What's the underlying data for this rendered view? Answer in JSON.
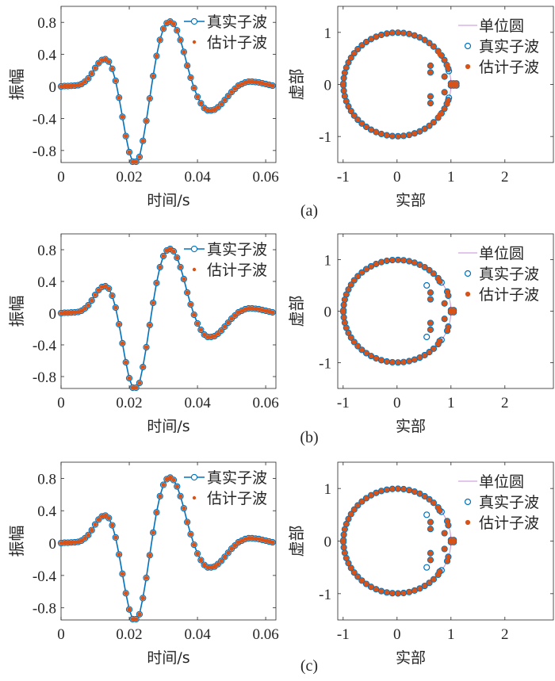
{
  "chart_data": [
    {
      "panel": "(a)",
      "kind": "wavelet",
      "type": "line",
      "xlabel": "时间/s",
      "ylabel": "振幅",
      "xlim": [
        0,
        0.063
      ],
      "ylim": [
        -0.95,
        1.0
      ],
      "xticks": [
        "0",
        "0.02",
        "0.04",
        "0.06"
      ],
      "yticks": [
        "-0.8",
        "-0.4",
        "0",
        "0.4",
        "0.8"
      ],
      "legend_position": "top-right",
      "series": [
        {
          "name": "真实子波",
          "color": "#0072BD",
          "marker": "open-circle",
          "line": true
        },
        {
          "name": "估计子波",
          "color": "#D95319",
          "marker": "dot",
          "line": false
        }
      ],
      "x": [
        0,
        0.001,
        0.002,
        0.003,
        0.004,
        0.005,
        0.006,
        0.007,
        0.008,
        0.009,
        0.01,
        0.011,
        0.012,
        0.013,
        0.014,
        0.015,
        0.016,
        0.017,
        0.018,
        0.019,
        0.02,
        0.021,
        0.022,
        0.023,
        0.024,
        0.025,
        0.026,
        0.027,
        0.028,
        0.029,
        0.03,
        0.031,
        0.032,
        0.033,
        0.034,
        0.035,
        0.036,
        0.037,
        0.038,
        0.039,
        0.04,
        0.041,
        0.042,
        0.043,
        0.044,
        0.045,
        0.046,
        0.047,
        0.048,
        0.049,
        0.05,
        0.051,
        0.052,
        0.053,
        0.054,
        0.055,
        0.056,
        0.057,
        0.058,
        0.059,
        0.06,
        0.061,
        0.062
      ],
      "values": [
        0,
        0.005,
        0.005,
        0.008,
        0.01,
        0.015,
        0.03,
        0.06,
        0.1,
        0.16,
        0.23,
        0.29,
        0.33,
        0.34,
        0.31,
        0.22,
        0.07,
        -0.14,
        -0.38,
        -0.62,
        -0.82,
        -0.94,
        -0.94,
        -0.88,
        -0.68,
        -0.43,
        -0.15,
        0.13,
        0.38,
        0.58,
        0.72,
        0.79,
        0.81,
        0.78,
        0.7,
        0.58,
        0.43,
        0.26,
        0.11,
        -0.02,
        -0.13,
        -0.21,
        -0.27,
        -0.3,
        -0.3,
        -0.29,
        -0.26,
        -0.22,
        -0.17,
        -0.12,
        -0.07,
        -0.03,
        0.01,
        0.03,
        0.05,
        0.06,
        0.06,
        0.055,
        0.05,
        0.04,
        0.03,
        0.02,
        0.01
      ]
    },
    {
      "panel": "(a)",
      "kind": "zeros",
      "type": "scatter",
      "xlabel": "实部",
      "ylabel": "虚部",
      "xlim": [
        -1.1,
        2.9
      ],
      "ylim": [
        -1.5,
        1.5
      ],
      "xticks": [
        "-1",
        "0",
        "1",
        "2"
      ],
      "yticks": [
        "-1",
        "0",
        "1"
      ],
      "legend_position": "top-right",
      "series": [
        {
          "name": "单位圆",
          "color": "#C58ED8",
          "style": "line"
        },
        {
          "name": "真实子波",
          "color": "#0072BD",
          "style": "open-circle"
        },
        {
          "name": "估计子波",
          "color": "#D95319",
          "style": "filled-dot"
        }
      ],
      "true_zeros": {
        "circle_angles_deg": [
          15,
          22,
          28,
          34,
          40,
          47,
          53,
          59,
          65,
          71,
          77,
          83,
          89,
          95,
          101,
          107,
          113,
          119,
          125,
          131,
          137,
          143,
          149,
          155,
          161,
          167,
          173,
          179
        ],
        "circle_radius": 0.995,
        "real_zeros": [
          [
            0.62,
            0.36
          ],
          [
            0.62,
            -0.36
          ],
          [
            0.62,
            0.23
          ],
          [
            0.62,
            -0.23
          ],
          [
            0.88,
            0.15
          ],
          [
            0.88,
            -0.15
          ],
          [
            1.0,
            0.02
          ],
          [
            1.0,
            -0.02
          ],
          [
            1.05,
            0.02
          ],
          [
            1.05,
            -0.02
          ],
          [
            1.1,
            0.02
          ],
          [
            1.1,
            -0.02
          ],
          [
            0.95,
            0.3
          ],
          [
            0.95,
            -0.3
          ]
        ]
      },
      "est_zeros": {
        "circle_angles_deg": [
          22,
          28,
          34,
          40,
          47,
          53,
          59,
          65,
          71,
          77,
          83,
          89,
          95,
          101,
          107,
          113,
          119,
          125,
          131,
          137,
          143,
          149,
          155,
          161,
          167,
          173,
          179
        ],
        "circle_radius": 0.995,
        "real_zeros": [
          [
            0.62,
            0.36
          ],
          [
            0.62,
            -0.36
          ],
          [
            0.62,
            0.23
          ],
          [
            0.62,
            -0.23
          ],
          [
            0.88,
            0.15
          ],
          [
            0.88,
            -0.15
          ],
          [
            1.0,
            0.02
          ],
          [
            1.0,
            -0.02
          ],
          [
            1.05,
            0.02
          ],
          [
            1.05,
            -0.02
          ],
          [
            1.1,
            0.02
          ],
          [
            1.1,
            -0.02
          ],
          [
            0.95,
            0.3
          ],
          [
            0.95,
            -0.3
          ],
          [
            0.79,
            0.58
          ],
          [
            0.79,
            -0.58
          ],
          [
            0.93,
            0.38
          ],
          [
            0.93,
            -0.38
          ]
        ]
      }
    },
    {
      "panel": "(b)",
      "kind": "wavelet",
      "type": "line",
      "xlabel": "时间/s",
      "ylabel": "振幅",
      "xlim": [
        0,
        0.063
      ],
      "ylim": [
        -0.95,
        1.0
      ],
      "xticks": [
        "0",
        "0.02",
        "0.04",
        "0.06"
      ],
      "yticks": [
        "-0.8",
        "-0.4",
        "0",
        "0.4",
        "0.8"
      ],
      "legend_position": "top-right",
      "series": [
        {
          "name": "真实子波",
          "color": "#0072BD",
          "marker": "open-circle",
          "line": true
        },
        {
          "name": "估计子波",
          "color": "#D95319",
          "marker": "dot",
          "line": false
        }
      ],
      "x": [
        0,
        0.001,
        0.002,
        0.003,
        0.004,
        0.005,
        0.006,
        0.007,
        0.008,
        0.009,
        0.01,
        0.011,
        0.012,
        0.013,
        0.014,
        0.015,
        0.016,
        0.017,
        0.018,
        0.019,
        0.02,
        0.021,
        0.022,
        0.023,
        0.024,
        0.025,
        0.026,
        0.027,
        0.028,
        0.029,
        0.03,
        0.031,
        0.032,
        0.033,
        0.034,
        0.035,
        0.036,
        0.037,
        0.038,
        0.039,
        0.04,
        0.041,
        0.042,
        0.043,
        0.044,
        0.045,
        0.046,
        0.047,
        0.048,
        0.049,
        0.05,
        0.051,
        0.052,
        0.053,
        0.054,
        0.055,
        0.056,
        0.057,
        0.058,
        0.059,
        0.06,
        0.061,
        0.062
      ],
      "values": [
        0,
        0.005,
        0.005,
        0.008,
        0.01,
        0.015,
        0.03,
        0.06,
        0.1,
        0.16,
        0.23,
        0.29,
        0.33,
        0.34,
        0.31,
        0.22,
        0.07,
        -0.14,
        -0.38,
        -0.62,
        -0.82,
        -0.94,
        -0.94,
        -0.88,
        -0.68,
        -0.43,
        -0.15,
        0.13,
        0.38,
        0.58,
        0.72,
        0.79,
        0.81,
        0.78,
        0.7,
        0.58,
        0.43,
        0.26,
        0.11,
        -0.02,
        -0.13,
        -0.21,
        -0.27,
        -0.3,
        -0.3,
        -0.29,
        -0.26,
        -0.22,
        -0.17,
        -0.12,
        -0.07,
        -0.03,
        0.01,
        0.03,
        0.05,
        0.06,
        0.06,
        0.055,
        0.05,
        0.04,
        0.03,
        0.02,
        0.01
      ]
    },
    {
      "panel": "(b)",
      "kind": "zeros",
      "type": "scatter",
      "xlabel": "实部",
      "ylabel": "虚部",
      "xlim": [
        -1.1,
        2.9
      ],
      "ylim": [
        -1.5,
        1.5
      ],
      "xticks": [
        "-1",
        "0",
        "1",
        "2"
      ],
      "yticks": [
        "-1",
        "0",
        "1"
      ],
      "legend_position": "top-right",
      "series": [
        {
          "name": "单位圆",
          "color": "#C58ED8",
          "style": "line"
        },
        {
          "name": "真实子波",
          "color": "#0072BD",
          "style": "open-circle"
        },
        {
          "name": "估计子波",
          "color": "#D95319",
          "style": "filled-dot"
        }
      ],
      "true_zeros": {
        "circle_angles_deg": [
          34,
          40,
          47,
          53,
          59,
          65,
          71,
          77,
          83,
          89,
          95,
          101,
          107,
          113,
          119,
          125,
          131,
          137,
          143,
          149,
          155,
          161,
          167,
          173,
          179
        ],
        "circle_radius": 0.995,
        "real_zeros": [
          [
            0.55,
            0.5
          ],
          [
            0.55,
            -0.5
          ],
          [
            0.62,
            0.36
          ],
          [
            0.62,
            -0.36
          ],
          [
            0.62,
            0.23
          ],
          [
            0.62,
            -0.23
          ],
          [
            0.88,
            0.15
          ],
          [
            0.88,
            -0.15
          ],
          [
            1.0,
            0.02
          ],
          [
            1.0,
            -0.02
          ],
          [
            1.05,
            0.02
          ],
          [
            1.05,
            -0.02
          ],
          [
            0.95,
            0.3
          ],
          [
            0.95,
            -0.3
          ],
          [
            0.79,
            0.58
          ],
          [
            0.79,
            -0.58
          ],
          [
            0.93,
            0.38
          ],
          [
            0.93,
            -0.38
          ]
        ]
      },
      "est_zeros": {
        "circle_angles_deg": [
          40,
          47,
          53,
          59,
          65,
          71,
          77,
          83,
          89,
          95,
          101,
          107,
          113,
          119,
          125,
          131,
          137,
          143,
          149,
          155,
          161,
          167,
          173,
          179
        ],
        "circle_radius": 0.995,
        "real_zeros": [
          [
            0.62,
            0.36
          ],
          [
            0.62,
            -0.36
          ],
          [
            0.62,
            0.23
          ],
          [
            0.62,
            -0.23
          ],
          [
            0.88,
            0.15
          ],
          [
            0.88,
            -0.15
          ],
          [
            1.0,
            0.02
          ],
          [
            1.0,
            -0.02
          ],
          [
            1.05,
            0.02
          ],
          [
            1.05,
            -0.02
          ],
          [
            0.95,
            0.3
          ],
          [
            0.95,
            -0.3
          ],
          [
            0.79,
            0.58
          ],
          [
            0.79,
            -0.58
          ],
          [
            0.93,
            0.38
          ],
          [
            0.93,
            -0.38
          ]
        ]
      }
    },
    {
      "panel": "(c)",
      "kind": "wavelet",
      "type": "line",
      "xlabel": "时间/s",
      "ylabel": "振幅",
      "xlim": [
        0,
        0.063
      ],
      "ylim": [
        -0.95,
        1.0
      ],
      "xticks": [
        "0",
        "0.02",
        "0.04",
        "0.06"
      ],
      "yticks": [
        "-0.8",
        "-0.4",
        "0",
        "0.4",
        "0.8"
      ],
      "legend_position": "top-right",
      "series": [
        {
          "name": "真实子波",
          "color": "#0072BD",
          "marker": "open-circle",
          "line": true
        },
        {
          "name": "估计子波",
          "color": "#D95319",
          "marker": "dot",
          "line": false
        }
      ],
      "x": [
        0,
        0.001,
        0.002,
        0.003,
        0.004,
        0.005,
        0.006,
        0.007,
        0.008,
        0.009,
        0.01,
        0.011,
        0.012,
        0.013,
        0.014,
        0.015,
        0.016,
        0.017,
        0.018,
        0.019,
        0.02,
        0.021,
        0.022,
        0.023,
        0.024,
        0.025,
        0.026,
        0.027,
        0.028,
        0.029,
        0.03,
        0.031,
        0.032,
        0.033,
        0.034,
        0.035,
        0.036,
        0.037,
        0.038,
        0.039,
        0.04,
        0.041,
        0.042,
        0.043,
        0.044,
        0.045,
        0.046,
        0.047,
        0.048,
        0.049,
        0.05,
        0.051,
        0.052,
        0.053,
        0.054,
        0.055,
        0.056,
        0.057,
        0.058,
        0.059,
        0.06,
        0.061,
        0.062
      ],
      "values": [
        0,
        0.005,
        0.005,
        0.008,
        0.01,
        0.015,
        0.03,
        0.06,
        0.1,
        0.16,
        0.23,
        0.29,
        0.33,
        0.34,
        0.31,
        0.22,
        0.07,
        -0.14,
        -0.38,
        -0.62,
        -0.82,
        -0.94,
        -0.94,
        -0.88,
        -0.68,
        -0.43,
        -0.15,
        0.13,
        0.38,
        0.58,
        0.72,
        0.79,
        0.81,
        0.78,
        0.7,
        0.58,
        0.43,
        0.26,
        0.11,
        -0.02,
        -0.13,
        -0.21,
        -0.27,
        -0.3,
        -0.3,
        -0.29,
        -0.26,
        -0.22,
        -0.17,
        -0.12,
        -0.07,
        -0.03,
        0.01,
        0.03,
        0.05,
        0.06,
        0.06,
        0.055,
        0.05,
        0.04,
        0.03,
        0.02,
        0.01
      ]
    },
    {
      "panel": "(c)",
      "kind": "zeros",
      "type": "scatter",
      "xlabel": "实部",
      "ylabel": "虚部",
      "xlim": [
        -1.1,
        2.9
      ],
      "ylim": [
        -1.5,
        1.5
      ],
      "xticks": [
        "-1",
        "0",
        "1",
        "2"
      ],
      "yticks": [
        "-1",
        "0",
        "1"
      ],
      "legend_position": "top-right",
      "series": [
        {
          "name": "单位圆",
          "color": "#C58ED8",
          "style": "line"
        },
        {
          "name": "真实子波",
          "color": "#0072BD",
          "style": "open-circle"
        },
        {
          "name": "估计子波",
          "color": "#D95319",
          "style": "filled-dot"
        }
      ],
      "true_zeros": {
        "circle_angles_deg": [
          34,
          40,
          47,
          53,
          59,
          65,
          71,
          77,
          83,
          89,
          95,
          101,
          107,
          113,
          119,
          125,
          131,
          137,
          143,
          149,
          155,
          161,
          167,
          173,
          179
        ],
        "circle_radius": 0.995,
        "real_zeros": [
          [
            0.55,
            0.5
          ],
          [
            0.55,
            -0.5
          ],
          [
            0.62,
            0.36
          ],
          [
            0.62,
            -0.36
          ],
          [
            0.62,
            0.23
          ],
          [
            0.62,
            -0.23
          ],
          [
            0.88,
            0.15
          ],
          [
            0.88,
            -0.15
          ],
          [
            1.0,
            0.02
          ],
          [
            1.0,
            -0.02
          ],
          [
            1.05,
            0.02
          ],
          [
            1.05,
            -0.02
          ],
          [
            0.95,
            0.3
          ],
          [
            0.95,
            -0.3
          ],
          [
            0.79,
            0.58
          ],
          [
            0.79,
            -0.58
          ],
          [
            0.93,
            0.38
          ],
          [
            0.93,
            -0.38
          ]
        ]
      },
      "est_zeros": {
        "circle_angles_deg": [
          40,
          47,
          53,
          59,
          65,
          71,
          77,
          83,
          89,
          95,
          101,
          107,
          113,
          119,
          125,
          131,
          137,
          143,
          149,
          155,
          161,
          167,
          173,
          179
        ],
        "circle_radius": 0.995,
        "real_zeros": [
          [
            0.62,
            0.36
          ],
          [
            0.62,
            -0.36
          ],
          [
            0.62,
            0.23
          ],
          [
            0.62,
            -0.23
          ],
          [
            0.88,
            0.15
          ],
          [
            0.88,
            -0.15
          ],
          [
            1.0,
            0.02
          ],
          [
            1.0,
            -0.02
          ],
          [
            1.05,
            0.02
          ],
          [
            1.05,
            -0.02
          ],
          [
            0.95,
            0.3
          ],
          [
            0.95,
            -0.3
          ],
          [
            0.79,
            0.58
          ],
          [
            0.79,
            -0.58
          ],
          [
            0.93,
            0.38
          ],
          [
            0.93,
            -0.38
          ]
        ]
      }
    }
  ]
}
